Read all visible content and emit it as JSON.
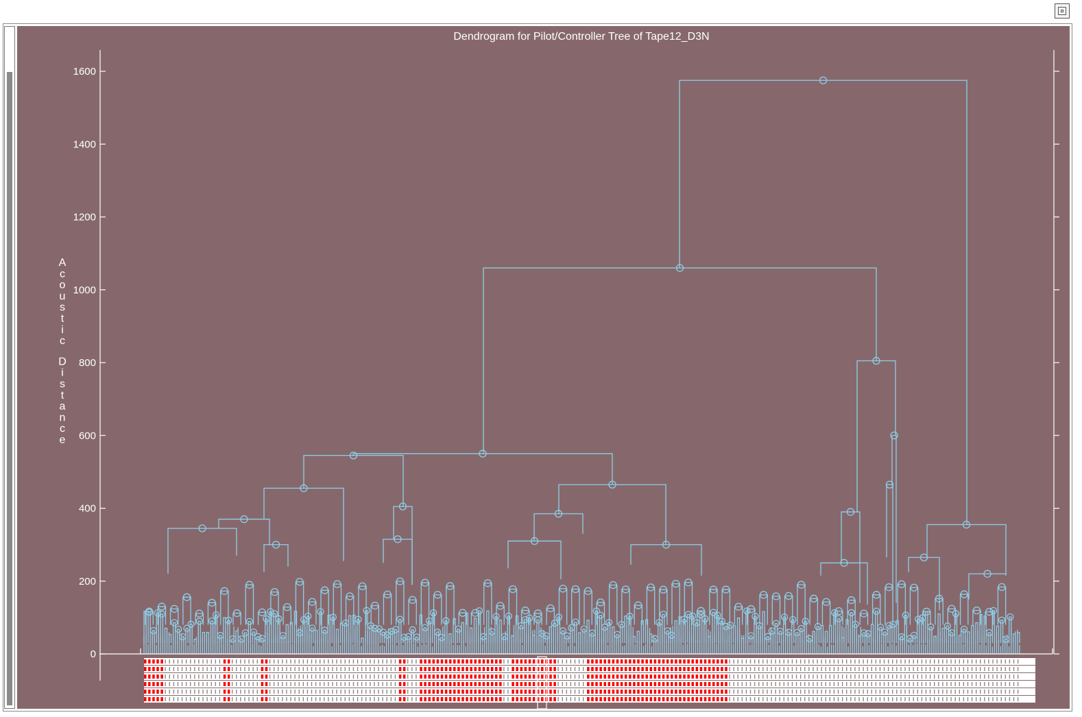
{
  "window": {
    "controls": {
      "maximize_icon": "maximize-icon"
    }
  },
  "colors": {
    "panel_background": "#86686c",
    "link_color": "#8ecfe8",
    "axis_color": "#ffffff",
    "leaf_label_background": "#ffffff",
    "leaf_label_highlight": "#ff0000"
  },
  "chart_data": {
    "type": "dendrogram",
    "title": "Dendrogram for Pilot/Controller Tree of Tape12_D3N",
    "xlabel": "",
    "ylabel": "Acoustic Distance",
    "ylim": [
      0,
      1660
    ],
    "yticks": [
      0,
      200,
      400,
      600,
      800,
      1000,
      1200,
      1400,
      1600
    ],
    "ytick_labels": [
      "0",
      "200",
      "400",
      "600",
      "800",
      "1000",
      "1200",
      "1400",
      "1600"
    ],
    "grid": false,
    "merge_heights_main": [
      {
        "id": "root",
        "height": 1575,
        "children": [
          "n1060",
          "n355"
        ]
      },
      {
        "id": "n1060",
        "height": 1060,
        "children": [
          "n550",
          "n805"
        ]
      },
      {
        "id": "n550",
        "height": 550,
        "children": [
          "n545",
          "n465"
        ]
      },
      {
        "id": "n545",
        "height": 545,
        "children": [
          "n455",
          "n405"
        ]
      },
      {
        "id": "n455",
        "height": 455,
        "children": [
          "n370",
          "n255"
        ]
      },
      {
        "id": "n370",
        "height": 370,
        "children": [
          "n345",
          "n300"
        ]
      },
      {
        "id": "n345",
        "height": 345,
        "children": [
          "n220",
          "n270"
        ]
      },
      {
        "id": "n300",
        "height": 300,
        "children": [
          "n225",
          "n240"
        ]
      },
      {
        "id": "n405",
        "height": 405,
        "children": [
          "n315",
          "n190a"
        ]
      },
      {
        "id": "n315",
        "height": 315,
        "children": [
          "n250",
          "n190a"
        ]
      },
      {
        "id": "n465",
        "height": 465,
        "children": [
          "n385",
          "n300b"
        ]
      },
      {
        "id": "n385",
        "height": 385,
        "children": [
          "n310",
          "n330"
        ]
      },
      {
        "id": "n310",
        "height": 310,
        "children": [
          "n235",
          "n205"
        ]
      },
      {
        "id": "n300b",
        "height": 300,
        "children": [
          "n245",
          "n215"
        ]
      },
      {
        "id": "n805",
        "height": 805,
        "children": [
          "n390",
          "n600"
        ]
      },
      {
        "id": "n390",
        "height": 390,
        "children": [
          "n250b",
          "n140"
        ]
      },
      {
        "id": "n250b",
        "height": 250,
        "children": [
          "n215b",
          "n135"
        ]
      },
      {
        "id": "n600",
        "height": 600,
        "children": [
          "n465b",
          "n140b"
        ]
      },
      {
        "id": "n465b",
        "height": 465,
        "children": [
          "n265",
          "n180"
        ]
      },
      {
        "id": "n355",
        "height": 355,
        "children": [
          "n265b",
          "n220b"
        ]
      },
      {
        "id": "n265b",
        "height": 265,
        "children": [
          "n225b",
          "n120"
        ]
      },
      {
        "id": "n220b",
        "height": 220,
        "children": [
          "n150",
          "n215c"
        ]
      }
    ],
    "leaf_count_estimate": 420,
    "leaf_label_color_groups": "red-highlighted leaf labels roughly spanning the middle block of leaves; remaining labels white"
  }
}
